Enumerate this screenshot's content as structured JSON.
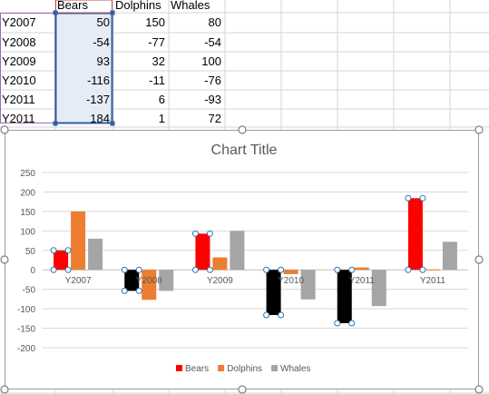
{
  "sheet": {
    "headers": [
      "Bears",
      "Dolphins",
      "Whales"
    ],
    "rows": [
      {
        "label": "Y2007",
        "values": [
          "50",
          "150",
          "80"
        ]
      },
      {
        "label": "Y2008",
        "values": [
          "-54",
          "-77",
          "-54"
        ]
      },
      {
        "label": "Y2009",
        "values": [
          "93",
          "32",
          "100"
        ]
      },
      {
        "label": "Y2010",
        "values": [
          "-116",
          "-11",
          "-76"
        ]
      },
      {
        "label": "Y2011",
        "values": [
          "-137",
          "6",
          "-93"
        ]
      },
      {
        "label": "Y2011",
        "values": [
          "184",
          "1",
          "72"
        ]
      }
    ],
    "colors": {
      "gridline": "#d4d4d4",
      "selection_border": "#2f5fa8",
      "selection_fill": "#e6ecf5",
      "header_highlight": "#c0504d"
    }
  },
  "chart_data": {
    "type": "bar",
    "title": "Chart Title",
    "categories": [
      "Y2007",
      "Y2008",
      "Y2009",
      "Y2010",
      "Y2011",
      "Y2011"
    ],
    "series": [
      {
        "name": "Bears",
        "values": [
          50,
          -54,
          93,
          -116,
          -137,
          184
        ],
        "color": "#ff0000",
        "point_colors": [
          "#ff0000",
          "#000000",
          "#ff0000",
          "#000000",
          "#000000",
          "#ff0000"
        ]
      },
      {
        "name": "Dolphins",
        "values": [
          150,
          -77,
          32,
          -11,
          6,
          1
        ],
        "color": "#ed7d31"
      },
      {
        "name": "Whales",
        "values": [
          80,
          -54,
          100,
          -76,
          -93,
          72
        ],
        "color": "#a5a5a5"
      }
    ],
    "yticks": [
      250,
      200,
      150,
      100,
      50,
      0,
      -50,
      -100,
      -150,
      -200
    ],
    "ylim": [
      -200,
      250
    ],
    "grid": true,
    "legend": "bottom",
    "selected_series": "Bears"
  }
}
